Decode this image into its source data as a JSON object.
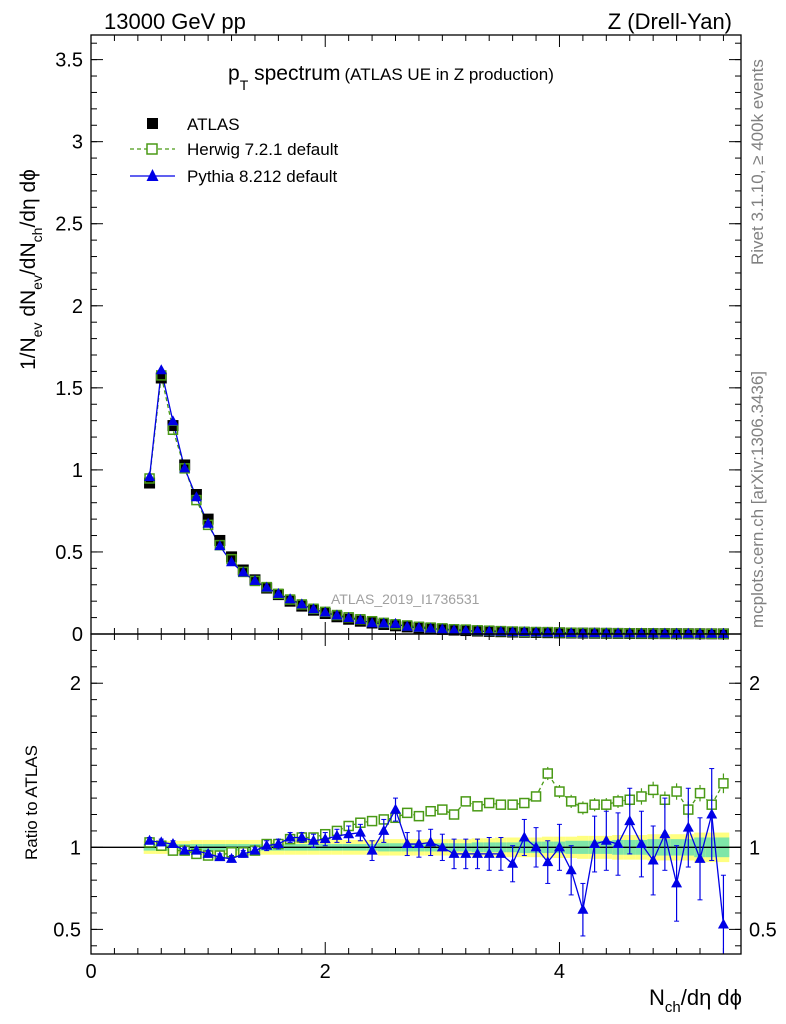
{
  "header": {
    "energy": "13000 GeV pp",
    "process": "Z (Drell-Yan)"
  },
  "plot_title": {
    "main": "p",
    "sub": "T",
    "rest": " spectrum",
    "paren": "(ATLAS UE in Z production)"
  },
  "side_labels": {
    "rivet": "Rivet 3.1.10, ≥ 400k events",
    "mcplots": "mcplots.cern.ch [arXiv:1306.3436]"
  },
  "watermark": "ATLAS_2019_I1736531",
  "y_axis_main": {
    "p1": "1/N",
    "s1": "ev",
    "p2": " dN",
    "s2": "ev",
    "p3": "/dN",
    "s3": "ch",
    "p4": "/dη dϕ"
  },
  "y_axis_ratio": "Ratio to ATLAS",
  "x_axis": {
    "p1": "N",
    "s1": "ch",
    "p2": "/dη dϕ"
  },
  "legend": [
    {
      "label": "ATLAS",
      "color": "#000000",
      "marker": "filled-square-icon"
    },
    {
      "label": "Herwig 7.2.1 default",
      "color": "#4a9a16",
      "marker": "open-square-icon"
    },
    {
      "label": "Pythia 8.212 default",
      "color": "#0000e6",
      "marker": "filled-triangle-icon"
    }
  ],
  "chart_data": {
    "type": "scatter",
    "main": {
      "xlim": [
        0,
        5.55
      ],
      "ylim": [
        0,
        3.65
      ],
      "yticks": [
        "0",
        "0.5",
        "1",
        "1.5",
        "2",
        "2.5",
        "3",
        "3.5"
      ]
    },
    "ratio": {
      "xlim": [
        0,
        5.55
      ],
      "ylim": [
        0.35,
        2.3
      ],
      "yticks": [
        "0.5",
        "1",
        "2"
      ],
      "xticks": [
        "0",
        "2",
        "4"
      ]
    },
    "x": [
      0.5,
      0.6,
      0.7,
      0.8,
      0.9,
      1.0,
      1.1,
      1.2,
      1.3,
      1.4,
      1.5,
      1.6,
      1.7,
      1.8,
      1.9,
      2.0,
      2.1,
      2.2,
      2.3,
      2.4,
      2.5,
      2.6,
      2.7,
      2.8,
      2.9,
      3.0,
      3.1,
      3.2,
      3.3,
      3.4,
      3.5,
      3.6,
      3.7,
      3.8,
      3.9,
      4.0,
      4.1,
      4.2,
      4.3,
      4.4,
      4.5,
      4.6,
      4.7,
      4.8,
      4.9,
      5.0,
      5.1,
      5.2,
      5.3,
      5.4
    ],
    "series": [
      {
        "name": "ATLAS",
        "color": "#000000",
        "values": [
          0.92,
          1.56,
          1.27,
          1.03,
          0.85,
          0.7,
          0.57,
          0.47,
          0.39,
          0.33,
          0.28,
          0.24,
          0.2,
          0.17,
          0.145,
          0.125,
          0.105,
          0.09,
          0.078,
          0.067,
          0.058,
          0.05,
          0.043,
          0.037,
          0.032,
          0.028,
          0.024,
          0.021,
          0.018,
          0.016,
          0.014,
          0.012,
          0.0105,
          0.0092,
          0.008,
          0.007,
          0.0061,
          0.0053,
          0.0046,
          0.004,
          0.0035,
          0.0031,
          0.0027,
          0.0024,
          0.0021,
          0.0018,
          0.0016,
          0.0014,
          0.0012,
          0.001
        ],
        "ratio": [
          1.0,
          1.0,
          1.0,
          1.0,
          1.0,
          1.0,
          1.0,
          1.0,
          1.0,
          1.0,
          1.0,
          1.0,
          1.0,
          1.0,
          1.0,
          1.0,
          1.0,
          1.0,
          1.0,
          1.0,
          1.0,
          1.0,
          1.0,
          1.0,
          1.0,
          1.0,
          1.0,
          1.0,
          1.0,
          1.0,
          1.0,
          1.0,
          1.0,
          1.0,
          1.0,
          1.0,
          1.0,
          1.0,
          1.0,
          1.0,
          1.0,
          1.0,
          1.0,
          1.0,
          1.0,
          1.0,
          1.0,
          1.0,
          1.0,
          1.0
        ],
        "uncertainty_band": {
          "stat_fraction": [
            0.02,
            0.02,
            0.02,
            0.02,
            0.02,
            0.02,
            0.02,
            0.02,
            0.02,
            0.02,
            0.02,
            0.02,
            0.02,
            0.02,
            0.02,
            0.02,
            0.02,
            0.02,
            0.02,
            0.02,
            0.025,
            0.025,
            0.025,
            0.025,
            0.025,
            0.025,
            0.025,
            0.025,
            0.03,
            0.03,
            0.03,
            0.03,
            0.035,
            0.035,
            0.035,
            0.035,
            0.04,
            0.04,
            0.04,
            0.04,
            0.045,
            0.045,
            0.045,
            0.05,
            0.05,
            0.05,
            0.05,
            0.06,
            0.06,
            0.06
          ],
          "total_fraction": [
            0.04,
            0.04,
            0.04,
            0.04,
            0.045,
            0.045,
            0.045,
            0.045,
            0.045,
            0.045,
            0.045,
            0.045,
            0.045,
            0.045,
            0.045,
            0.045,
            0.045,
            0.045,
            0.045,
            0.045,
            0.05,
            0.05,
            0.05,
            0.05,
            0.05,
            0.05,
            0.05,
            0.05,
            0.055,
            0.055,
            0.06,
            0.06,
            0.06,
            0.06,
            0.065,
            0.065,
            0.065,
            0.07,
            0.07,
            0.07,
            0.075,
            0.075,
            0.075,
            0.08,
            0.08,
            0.08,
            0.08,
            0.09,
            0.09,
            0.09
          ]
        }
      },
      {
        "name": "Herwig 7.2.1 default",
        "color": "#4a9a16",
        "ratio": [
          1.03,
          1.01,
          0.98,
          0.98,
          0.96,
          0.95,
          0.95,
          0.97,
          0.97,
          0.98,
          1.02,
          1.02,
          1.05,
          1.06,
          1.06,
          1.08,
          1.1,
          1.13,
          1.15,
          1.16,
          1.17,
          1.18,
          1.21,
          1.19,
          1.22,
          1.23,
          1.2,
          1.28,
          1.25,
          1.27,
          1.26,
          1.26,
          1.27,
          1.31,
          1.45,
          1.34,
          1.28,
          1.24,
          1.26,
          1.26,
          1.28,
          1.29,
          1.31,
          1.35,
          1.29,
          1.34,
          1.23,
          1.33,
          1.26,
          1.39
        ],
        "ratio_err": [
          0.02,
          0.02,
          0.02,
          0.02,
          0.02,
          0.02,
          0.02,
          0.02,
          0.02,
          0.02,
          0.02,
          0.02,
          0.02,
          0.02,
          0.02,
          0.02,
          0.02,
          0.02,
          0.02,
          0.02,
          0.02,
          0.02,
          0.02,
          0.02,
          0.02,
          0.02,
          0.02,
          0.02,
          0.02,
          0.02,
          0.02,
          0.02,
          0.03,
          0.03,
          0.04,
          0.04,
          0.04,
          0.04,
          0.04,
          0.04,
          0.04,
          0.04,
          0.05,
          0.05,
          0.05,
          0.05,
          0.05,
          0.05,
          0.06,
          0.06
        ]
      },
      {
        "name": "Pythia 8.212 default",
        "color": "#0000e6",
        "ratio": [
          1.04,
          1.03,
          1.02,
          0.98,
          0.98,
          0.96,
          0.94,
          0.93,
          0.96,
          0.98,
          1.01,
          1.02,
          1.06,
          1.06,
          1.04,
          1.05,
          1.07,
          1.08,
          1.09,
          0.98,
          1.1,
          1.23,
          1.02,
          1.02,
          1.03,
          1.0,
          0.96,
          0.96,
          0.96,
          0.96,
          0.96,
          0.9,
          1.06,
          1.0,
          0.91,
          1.0,
          0.86,
          0.62,
          1.02,
          1.04,
          1.02,
          1.16,
          1.02,
          0.92,
          1.08,
          0.78,
          1.12,
          0.93,
          1.2,
          0.53
        ],
        "ratio_err": [
          0.02,
          0.02,
          0.02,
          0.02,
          0.02,
          0.02,
          0.02,
          0.02,
          0.02,
          0.02,
          0.03,
          0.03,
          0.03,
          0.03,
          0.04,
          0.04,
          0.04,
          0.05,
          0.05,
          0.06,
          0.07,
          0.07,
          0.07,
          0.08,
          0.08,
          0.08,
          0.09,
          0.09,
          0.09,
          0.1,
          0.1,
          0.11,
          0.11,
          0.12,
          0.13,
          0.14,
          0.15,
          0.16,
          0.17,
          0.18,
          0.19,
          0.2,
          0.2,
          0.21,
          0.22,
          0.23,
          0.24,
          0.25,
          0.28,
          0.3
        ]
      }
    ]
  }
}
